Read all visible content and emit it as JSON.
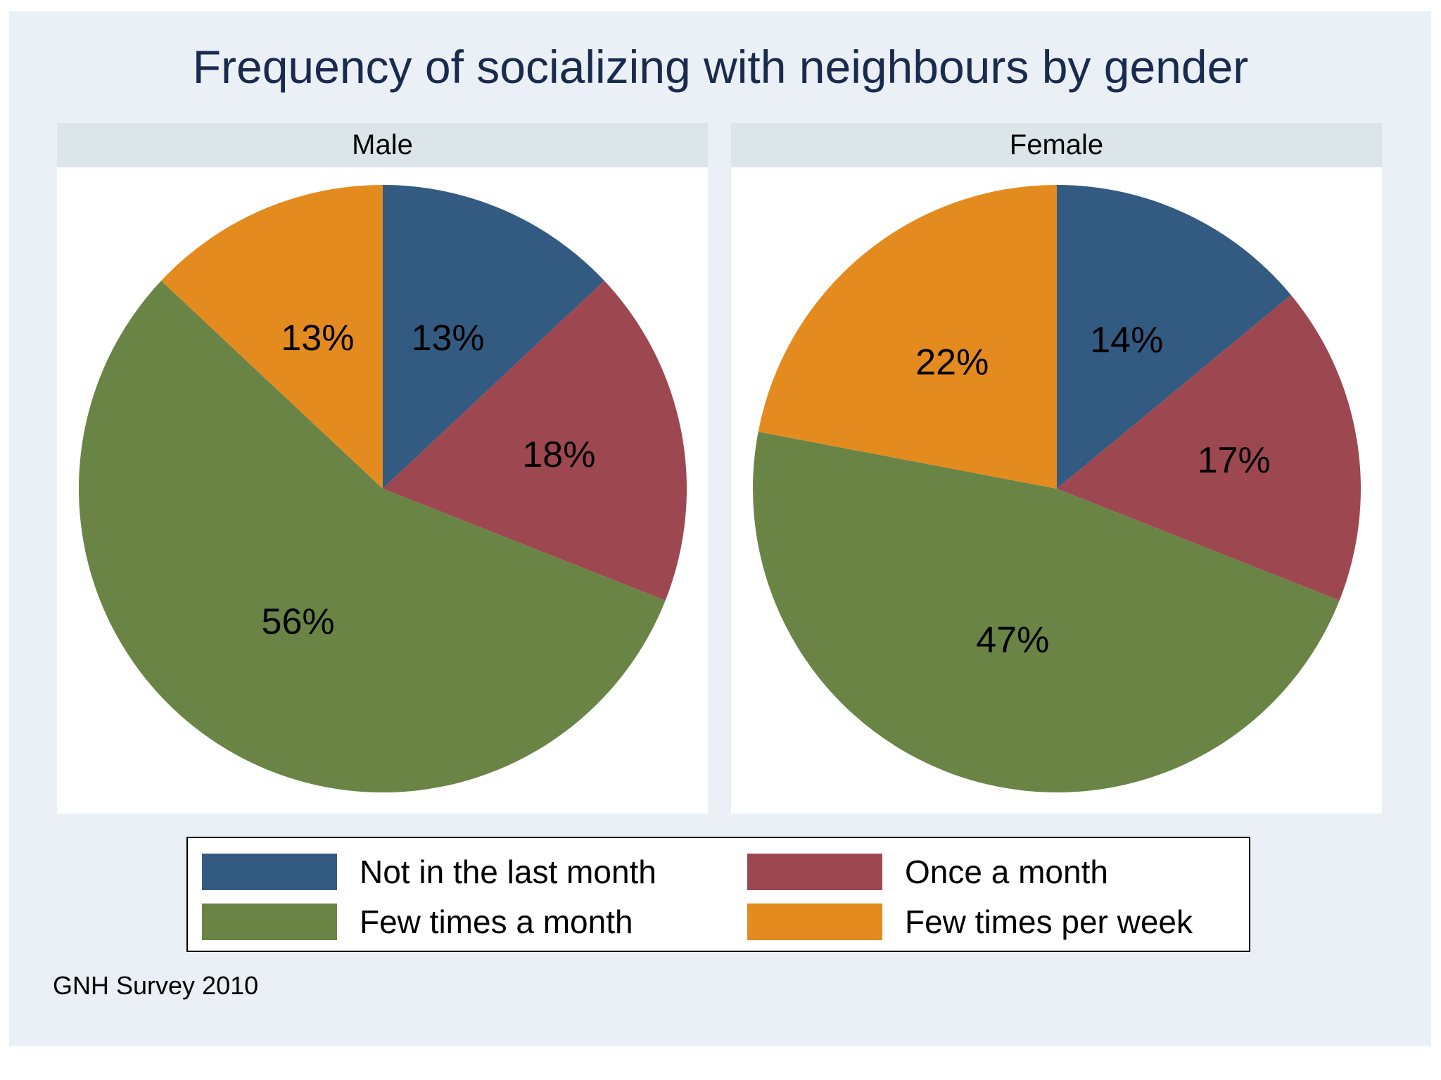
{
  "chart_data": {
    "type": "pie",
    "title": "Frequency of socializing with neighbours by gender",
    "categories": [
      "Not in the last month",
      "Once a month",
      "Few times a month",
      "Few times per week"
    ],
    "colors": [
      "#335a80",
      "#9d4751",
      "#6a8446",
      "#e48b1f"
    ],
    "panels": [
      {
        "name": "Male",
        "values": [
          13,
          18,
          56,
          13
        ],
        "labels": [
          "13%",
          "18%",
          "56%",
          "13%"
        ]
      },
      {
        "name": "Female",
        "values": [
          14,
          17,
          47,
          22
        ],
        "labels": [
          "14%",
          "17%",
          "47%",
          "22%"
        ]
      }
    ],
    "legend_position": "bottom",
    "note": "GNH Survey 2010"
  }
}
